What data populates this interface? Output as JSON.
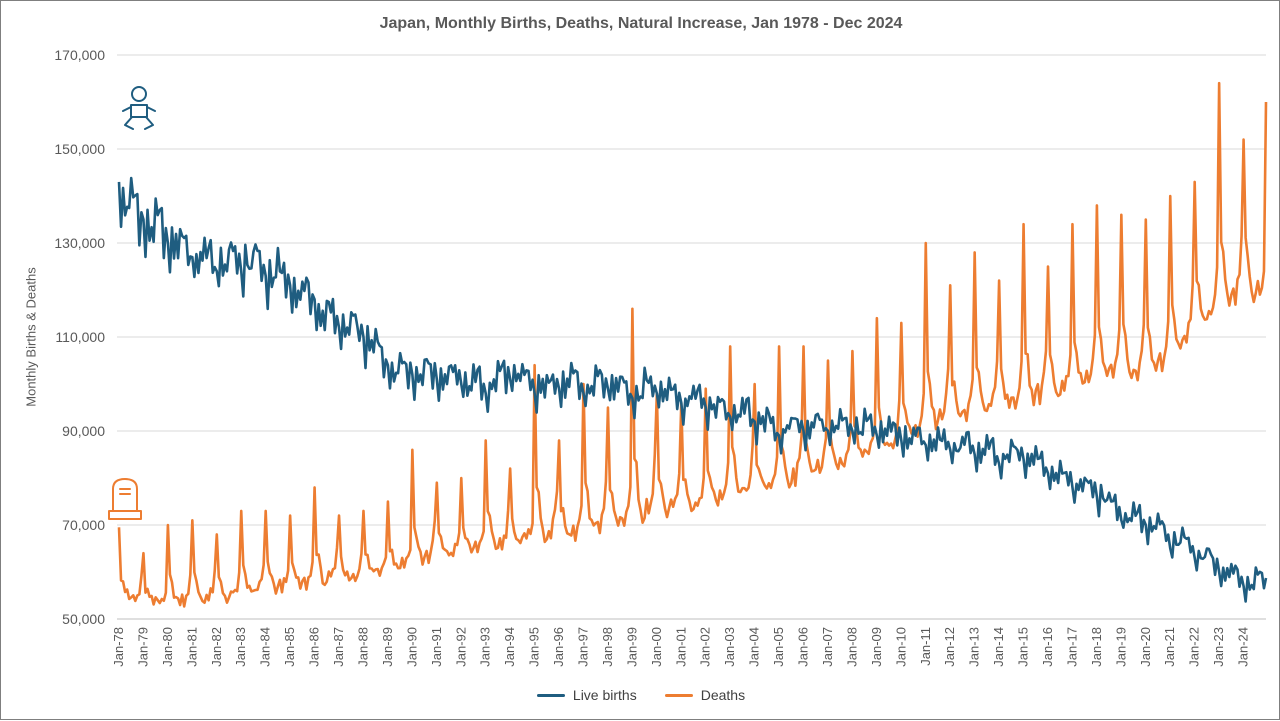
{
  "chart_data": {
    "type": "line",
    "title": "Japan, Monthly Births, Deaths, Natural Increase, Jan 1978 - Dec 2024",
    "xlabel": "",
    "ylabel": "Monthly Births & Deaths",
    "ylim": [
      50000,
      170000
    ],
    "yticks": [
      50000,
      70000,
      90000,
      110000,
      130000,
      150000,
      170000
    ],
    "ytick_labels": [
      "50,000",
      "70,000",
      "90,000",
      "110,000",
      "130,000",
      "150,000",
      "170,000"
    ],
    "x_start": "Jan 1978",
    "x_end": "Dec 2024",
    "xtick_labels": [
      "Jan-78",
      "Jan-79",
      "Jan-80",
      "Jan-81",
      "Jan-82",
      "Jan-83",
      "Jan-84",
      "Jan-85",
      "Jan-86",
      "Jan-87",
      "Jan-88",
      "Jan-89",
      "Jan-90",
      "Jan-91",
      "Jan-92",
      "Jan-93",
      "Jan-94",
      "Jan-95",
      "Jan-96",
      "Jan-97",
      "Jan-98",
      "Jan-99",
      "Jan-00",
      "Jan-01",
      "Jan-02",
      "Jan-03",
      "Jan-04",
      "Jan-05",
      "Jan-06",
      "Jan-07",
      "Jan-08",
      "Jan-09",
      "Jan-10",
      "Jan-11",
      "Jan-12",
      "Jan-13",
      "Jan-14",
      "Jan-15",
      "Jan-16",
      "Jan-17",
      "Jan-18",
      "Jan-19",
      "Jan-20",
      "Jan-21",
      "Jan-22",
      "Jan-23",
      "Jan-24"
    ],
    "grid": "horizontal",
    "legend_position": "bottom",
    "series": [
      {
        "name": "Live births",
        "color": "#1f5d80",
        "annual_points": [
          {
            "year": 1978,
            "jan": 143000,
            "trend": 140000,
            "amp": 8000
          },
          {
            "year": 1979,
            "jan": 135000,
            "trend": 134000,
            "amp": 7000
          },
          {
            "year": 1980,
            "jan": 130000,
            "trend": 131000,
            "amp": 6500
          },
          {
            "year": 1981,
            "jan": 127000,
            "trend": 127000,
            "amp": 6500
          },
          {
            "year": 1982,
            "jan": 124000,
            "trend": 125000,
            "amp": 7000
          },
          {
            "year": 1983,
            "jan": 124000,
            "trend": 126000,
            "amp": 7000
          },
          {
            "year": 1984,
            "jan": 123000,
            "trend": 124000,
            "amp": 6500
          },
          {
            "year": 1985,
            "jan": 121000,
            "trend": 121000,
            "amp": 6500
          },
          {
            "year": 1986,
            "jan": 118000,
            "trend": 116000,
            "amp": 6000
          },
          {
            "year": 1987,
            "jan": 112000,
            "trend": 112000,
            "amp": 5500
          },
          {
            "year": 1988,
            "jan": 110000,
            "trend": 110000,
            "amp": 5500
          },
          {
            "year": 1989,
            "jan": 104000,
            "trend": 104000,
            "amp": 5000
          },
          {
            "year": 1990,
            "jan": 102000,
            "trend": 102000,
            "amp": 5000
          },
          {
            "year": 1991,
            "jan": 101000,
            "trend": 102000,
            "amp": 5000
          },
          {
            "year": 1992,
            "jan": 100000,
            "trend": 100500,
            "amp": 5000
          },
          {
            "year": 1993,
            "jan": 98000,
            "trend": 99000,
            "amp": 5000
          },
          {
            "year": 1994,
            "jan": 101000,
            "trend": 102000,
            "amp": 5000
          },
          {
            "year": 1995,
            "jan": 98000,
            "trend": 99000,
            "amp": 5000
          },
          {
            "year": 1996,
            "jan": 99000,
            "trend": 100000,
            "amp": 5000
          },
          {
            "year": 1997,
            "jan": 98000,
            "trend": 99000,
            "amp": 5000
          },
          {
            "year": 1998,
            "jan": 99000,
            "trend": 100000,
            "amp": 5000
          },
          {
            "year": 1999,
            "jan": 97000,
            "trend": 98000,
            "amp": 5000
          },
          {
            "year": 2000,
            "jan": 98000,
            "trend": 99000,
            "amp": 5000
          },
          {
            "year": 2001,
            "jan": 96000,
            "trend": 97000,
            "amp": 5000
          },
          {
            "year": 2002,
            "jan": 95000,
            "trend": 95500,
            "amp": 5000
          },
          {
            "year": 2003,
            "jan": 93000,
            "trend": 93500,
            "amp": 5000
          },
          {
            "year": 2004,
            "jan": 92000,
            "trend": 92500,
            "amp": 4500
          },
          {
            "year": 2005,
            "jan": 89000,
            "trend": 89500,
            "amp": 4500
          },
          {
            "year": 2006,
            "jan": 90000,
            "trend": 91000,
            "amp": 4500
          },
          {
            "year": 2007,
            "jan": 90000,
            "trend": 90500,
            "amp": 4500
          },
          {
            "year": 2008,
            "jan": 90000,
            "trend": 91000,
            "amp": 4500
          },
          {
            "year": 2009,
            "jan": 89000,
            "trend": 89500,
            "amp": 4500
          },
          {
            "year": 2010,
            "jan": 88000,
            "trend": 89000,
            "amp": 4500
          },
          {
            "year": 2011,
            "jan": 87000,
            "trend": 87500,
            "amp": 4500
          },
          {
            "year": 2012,
            "jan": 86000,
            "trend": 86500,
            "amp": 4500
          },
          {
            "year": 2013,
            "jan": 85000,
            "trend": 86000,
            "amp": 4500
          },
          {
            "year": 2014,
            "jan": 83000,
            "trend": 84000,
            "amp": 4500
          },
          {
            "year": 2015,
            "jan": 84000,
            "trend": 84500,
            "amp": 4500
          },
          {
            "year": 2016,
            "jan": 81000,
            "trend": 82000,
            "amp": 4000
          },
          {
            "year": 2017,
            "jan": 78000,
            "trend": 79000,
            "amp": 4000
          },
          {
            "year": 2018,
            "jan": 76000,
            "trend": 77000,
            "amp": 4000
          },
          {
            "year": 2019,
            "jan": 71000,
            "trend": 72500,
            "amp": 4000
          },
          {
            "year": 2020,
            "jan": 70000,
            "trend": 70500,
            "amp": 4000
          },
          {
            "year": 2021,
            "jan": 65000,
            "trend": 67000,
            "amp": 4000
          },
          {
            "year": 2022,
            "jan": 63000,
            "trend": 64500,
            "amp": 3500
          },
          {
            "year": 2023,
            "jan": 60000,
            "trend": 61000,
            "amp": 3500
          },
          {
            "year": 2024,
            "jan": 57000,
            "trend": 57500,
            "amp": 3500
          }
        ]
      },
      {
        "name": "Deaths",
        "color": "#ed7d31",
        "annual_points": [
          {
            "year": 1978,
            "jan": 69500,
            "base": 55000,
            "peak": 69500
          },
          {
            "year": 1979,
            "jan": 64000,
            "base": 53000,
            "peak": 64000
          },
          {
            "year": 1980,
            "jan": 70000,
            "base": 53500,
            "peak": 70000
          },
          {
            "year": 1981,
            "jan": 71000,
            "base": 54000,
            "peak": 71000
          },
          {
            "year": 1982,
            "jan": 68000,
            "base": 54000,
            "peak": 68000
          },
          {
            "year": 1983,
            "jan": 73000,
            "base": 55000,
            "peak": 73000
          },
          {
            "year": 1984,
            "jan": 73000,
            "base": 56000,
            "peak": 73000
          },
          {
            "year": 1985,
            "jan": 72000,
            "base": 56500,
            "peak": 72000
          },
          {
            "year": 1986,
            "jan": 78000,
            "base": 57500,
            "peak": 78000
          },
          {
            "year": 1987,
            "jan": 72000,
            "base": 58000,
            "peak": 72000
          },
          {
            "year": 1988,
            "jan": 73000,
            "base": 59500,
            "peak": 73000
          },
          {
            "year": 1989,
            "jan": 75000,
            "base": 60500,
            "peak": 75000
          },
          {
            "year": 1990,
            "jan": 86000,
            "base": 62000,
            "peak": 86000
          },
          {
            "year": 1991,
            "jan": 79000,
            "base": 63000,
            "peak": 79000
          },
          {
            "year": 1992,
            "jan": 80000,
            "base": 64000,
            "peak": 80000
          },
          {
            "year": 1993,
            "jan": 88000,
            "base": 65000,
            "peak": 88000
          },
          {
            "year": 1994,
            "jan": 82000,
            "base": 65500,
            "peak": 82000
          },
          {
            "year": 1995,
            "jan": 104000,
            "base": 67000,
            "peak": 104000
          },
          {
            "year": 1996,
            "jan": 88000,
            "base": 67000,
            "peak": 88000
          },
          {
            "year": 1997,
            "jan": 100000,
            "base": 68000,
            "peak": 100000
          },
          {
            "year": 1998,
            "jan": 95000,
            "base": 70000,
            "peak": 95000
          },
          {
            "year": 1999,
            "jan": 116000,
            "base": 71000,
            "peak": 116000
          },
          {
            "year": 2000,
            "jan": 98000,
            "base": 72000,
            "peak": 98000
          },
          {
            "year": 2001,
            "jan": 96000,
            "base": 73000,
            "peak": 96000
          },
          {
            "year": 2002,
            "jan": 99000,
            "base": 74000,
            "peak": 99000
          },
          {
            "year": 2003,
            "jan": 108000,
            "base": 75500,
            "peak": 108000
          },
          {
            "year": 2004,
            "jan": 100000,
            "base": 76500,
            "peak": 100000
          },
          {
            "year": 2005,
            "jan": 108000,
            "base": 78500,
            "peak": 108000
          },
          {
            "year": 2006,
            "jan": 108000,
            "base": 80000,
            "peak": 108000
          },
          {
            "year": 2007,
            "jan": 105000,
            "base": 81500,
            "peak": 105000
          },
          {
            "year": 2008,
            "jan": 107000,
            "base": 83500,
            "peak": 107000
          },
          {
            "year": 2009,
            "jan": 114000,
            "base": 85000,
            "peak": 114000
          },
          {
            "year": 2010,
            "jan": 113000,
            "base": 88000,
            "peak": 113000
          },
          {
            "year": 2011,
            "jan": 130000,
            "base": 91000,
            "peak": 130000
          },
          {
            "year": 2012,
            "jan": 121000,
            "base": 92000,
            "peak": 121000
          },
          {
            "year": 2013,
            "jan": 128000,
            "base": 94000,
            "peak": 128000
          },
          {
            "year": 2014,
            "jan": 122000,
            "base": 94500,
            "peak": 122000
          },
          {
            "year": 2015,
            "jan": 134000,
            "base": 96000,
            "peak": 134000
          },
          {
            "year": 2016,
            "jan": 125000,
            "base": 97000,
            "peak": 125000
          },
          {
            "year": 2017,
            "jan": 134000,
            "base": 99000,
            "peak": 134000
          },
          {
            "year": 2018,
            "jan": 138000,
            "base": 100500,
            "peak": 138000
          },
          {
            "year": 2019,
            "jan": 136000,
            "base": 102000,
            "peak": 136000
          },
          {
            "year": 2020,
            "jan": 135000,
            "base": 101000,
            "peak": 135000
          },
          {
            "year": 2021,
            "jan": 140000,
            "base": 105000,
            "peak": 140000
          },
          {
            "year": 2022,
            "jan": 143000,
            "base": 112000,
            "peak": 143000
          },
          {
            "year": 2023,
            "jan": 164000,
            "base": 116000,
            "peak": 164000
          },
          {
            "year": 2024,
            "jan": 152000,
            "base": 118000,
            "peak": 160000
          }
        ]
      }
    ]
  },
  "icons": {
    "births": "baby-icon",
    "deaths": "tombstone-icon"
  }
}
